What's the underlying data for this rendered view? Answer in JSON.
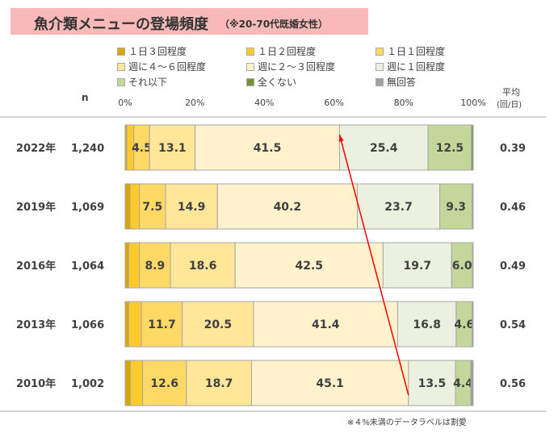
{
  "title": "魚介類メニューの登場頻度",
  "subtitle": "（※20-70代既婚女性）",
  "n_header": "n",
  "avg_header": [
    "平均",
    "(回/日)"
  ],
  "footnote": "※４%未満のデータラベルは割愛",
  "chart_data": {
    "type": "bar",
    "orientation": "horizontal-stacked-100",
    "xlim": [
      0,
      100
    ],
    "x_ticks": [
      "0%",
      "20%",
      "40%",
      "60%",
      "80%",
      "100%"
    ],
    "label_threshold": 4,
    "categories": [
      "2022年",
      "2019年",
      "2016年",
      "2013年",
      "2010年"
    ],
    "n": [
      "1,240",
      "1,069",
      "1,064",
      "1,066",
      "1,002"
    ],
    "average": [
      "0.39",
      "0.46",
      "0.49",
      "0.54",
      "0.56"
    ],
    "series": [
      {
        "name": "１日３回程度",
        "color": "#D9A800",
        "values": [
          0.5,
          1.4,
          1.0,
          1.0,
          1.5
        ]
      },
      {
        "name": "１日２回程度",
        "color": "#FFCA2B",
        "values": [
          2.0,
          2.7,
          3.1,
          3.7,
          3.5
        ]
      },
      {
        "name": "１日１回程度",
        "color": "#FFD966",
        "values": [
          4.5,
          7.5,
          8.9,
          11.7,
          12.6
        ]
      },
      {
        "name": "週に４～６回程度",
        "color": "#FFE699",
        "values": [
          13.1,
          14.9,
          18.6,
          20.5,
          18.7
        ]
      },
      {
        "name": "週に２～３回程度",
        "color": "#FFF2CC",
        "values": [
          41.5,
          40.2,
          42.5,
          41.4,
          45.1
        ]
      },
      {
        "name": "週に１回程度",
        "color": "#EBF1DE",
        "values": [
          25.4,
          23.7,
          19.7,
          16.8,
          13.5
        ]
      },
      {
        "name": "それ以下",
        "color": "#C4D79B",
        "values": [
          12.5,
          9.3,
          6.0,
          4.6,
          4.4
        ]
      },
      {
        "name": "全くない",
        "color": "#76933C",
        "values": [
          0.5,
          0.0,
          0.0,
          0.0,
          0.0
        ]
      },
      {
        "name": "無回答",
        "color": "#A0A0A0",
        "values": [
          0.0,
          0.3,
          0.2,
          0.3,
          0.7
        ]
      }
    ],
    "annotation": "red arrow from 2010 to 2022 along the 週に２～３回程度 / 週に１回程度 boundary"
  }
}
